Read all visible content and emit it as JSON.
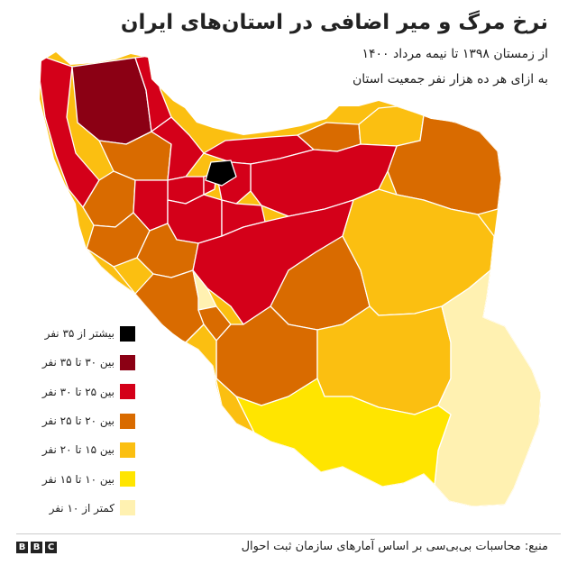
{
  "title": "نرخ مرگ و میر اضافی در استان‌های ایران",
  "subtitle1": "از زمستان ۱۳۹۸ تا نیمه مرداد ۱۴۰۰",
  "subtitle2": "به ازای هر ده هزار نفر جمعیت استان",
  "legend": [
    {
      "label": "بیشتر از ۳۵ نفر",
      "color": "#000000"
    },
    {
      "label": "بین ۳۰ تا ۳۵ نفر",
      "color": "#8b0014"
    },
    {
      "label": "بین ۲۵ تا ۳۰ نفر",
      "color": "#d40019"
    },
    {
      "label": "بین ۲۰ تا ۲۵ نفر",
      "color": "#d96b00"
    },
    {
      "label": "بین ۱۵ تا ۲۰ نفر",
      "color": "#fbbf11"
    },
    {
      "label": "بین ۱۰ تا ۱۵ نفر",
      "color": "#ffe500"
    },
    {
      "label": "کمتر از ۱۰ نفر",
      "color": "#fff1b1"
    }
  ],
  "source": "منبع: محاسبات بی‌بی‌سی بر اساس آمارهای سازمان ثبت احوال",
  "logo": [
    "B",
    "B",
    "C"
  ]
}
